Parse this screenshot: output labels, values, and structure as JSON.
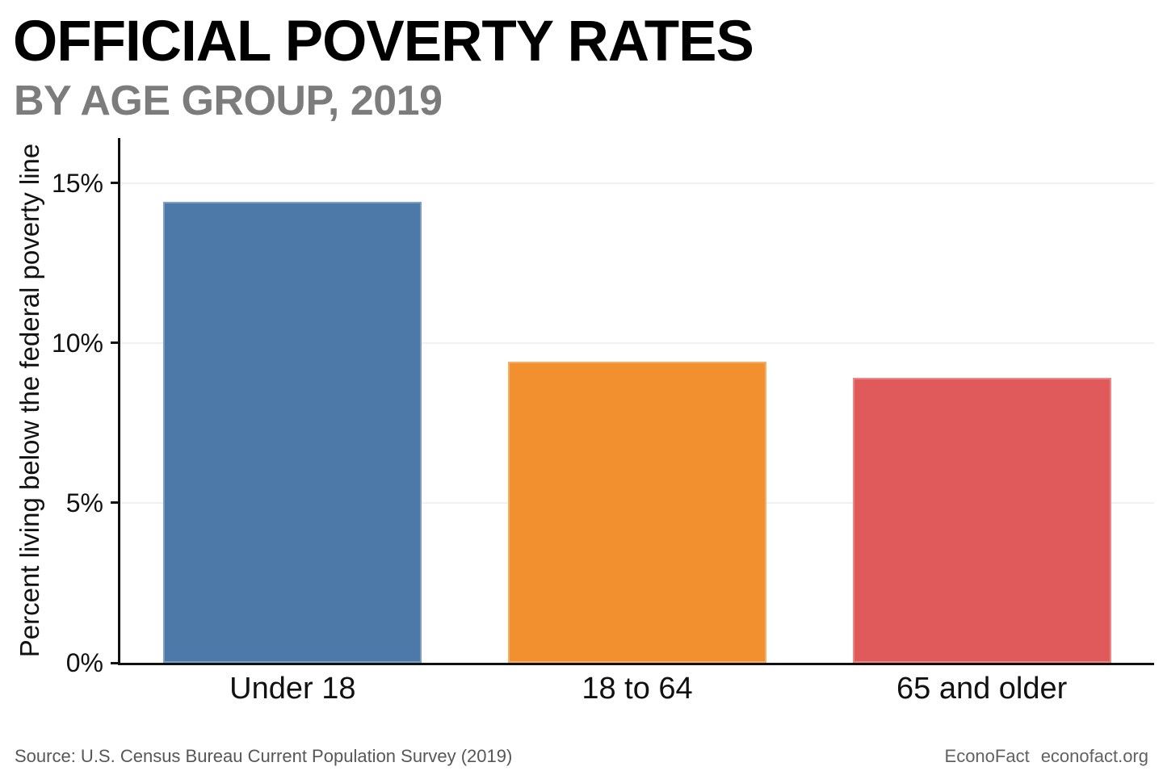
{
  "header": {
    "title": "OFFICIAL POVERTY RATES",
    "subtitle": "BY AGE GROUP, 2019"
  },
  "chart_data": {
    "type": "bar",
    "title": "OFFICIAL POVERTY RATES",
    "subtitle": "BY AGE GROUP, 2019",
    "categories": [
      "Under 18",
      "18 to 64",
      "65 and older"
    ],
    "values": [
      14.4,
      9.4,
      8.9
    ],
    "bar_colors": [
      "#4D79A8",
      "#F2902F",
      "#E05A5C"
    ],
    "xlabel": "",
    "ylabel": "Percent living below the federal poverty line",
    "ylim": [
      0,
      16.4
    ],
    "yticks": [
      0,
      5,
      10,
      15
    ],
    "ytick_labels": [
      "0%",
      "5%",
      "10%",
      "15%"
    ],
    "grid": "horizontal",
    "gridline_color": "#f1f1f1",
    "axis_color": "#111111",
    "legend": "none",
    "bar_width_fraction": 0.75
  },
  "footer": {
    "source": "Source: U.S. Census Bureau Current Population Survey (2019)",
    "brand": "EconoFact",
    "website": "econofact.org"
  }
}
